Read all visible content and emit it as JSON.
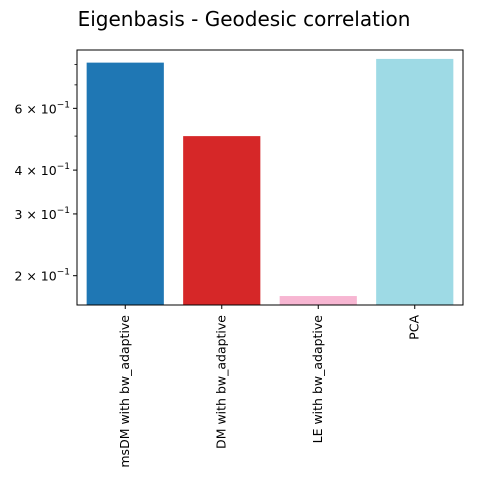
{
  "chart_data": {
    "type": "bar",
    "title": "Eigenbasis - Geodesic correlation",
    "xlabel": "",
    "ylabel": "",
    "yscale": "log",
    "ylim": [
      0.165,
      0.88
    ],
    "categories": [
      "msDM with bw_adaptive",
      "DM with bw_adaptive",
      "LE with bw_adaptive",
      "PCA"
    ],
    "values": [
      0.81,
      0.5,
      0.175,
      0.83
    ],
    "colors": [
      "#1f77b4",
      "#d62728",
      "#f7b6d2",
      "#9edae5"
    ],
    "yticks": [
      {
        "value": 0.2,
        "mantissa": "2",
        "exponent": "−1"
      },
      {
        "value": 0.3,
        "mantissa": "3",
        "exponent": "−1"
      },
      {
        "value": 0.4,
        "mantissa": "4",
        "exponent": "−1"
      },
      {
        "value": 0.6,
        "mantissa": "6",
        "exponent": "−1"
      }
    ],
    "tick_base": "10",
    "tick_times": "×",
    "minor_yticks": [
      0.5,
      0.7,
      0.8
    ],
    "grid": false,
    "legend": "none"
  }
}
